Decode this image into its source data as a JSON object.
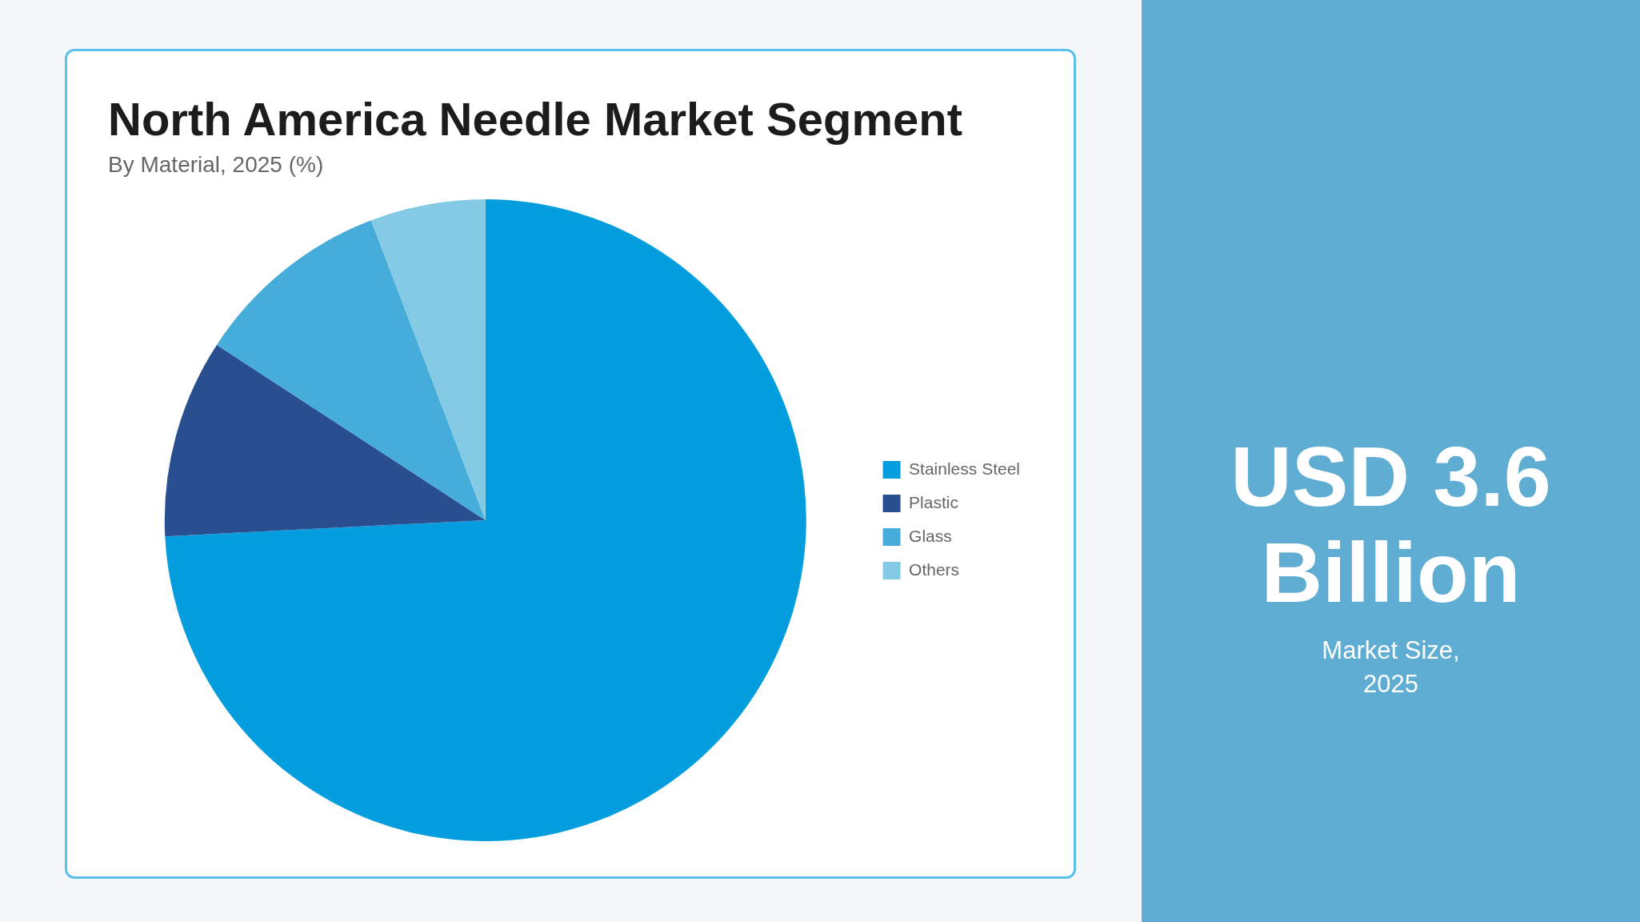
{
  "chart_data": [
    {
      "type": "pie",
      "title": "North America Needle Market Segment",
      "subtitle": "By Material, 2025 (%)",
      "categories": [
        "Stainless Steel",
        "Plastic",
        "Glass",
        "Others"
      ],
      "values": [
        74.2,
        10,
        10,
        5.8
      ],
      "colors": [
        "#049ede",
        "#294f91",
        "#46acda",
        "#83cae4"
      ],
      "legend": "right"
    },
    {
      "type": "other",
      "title": "USD 3.6 Billion",
      "subtitle": "Market Size, 2025"
    }
  ]
}
